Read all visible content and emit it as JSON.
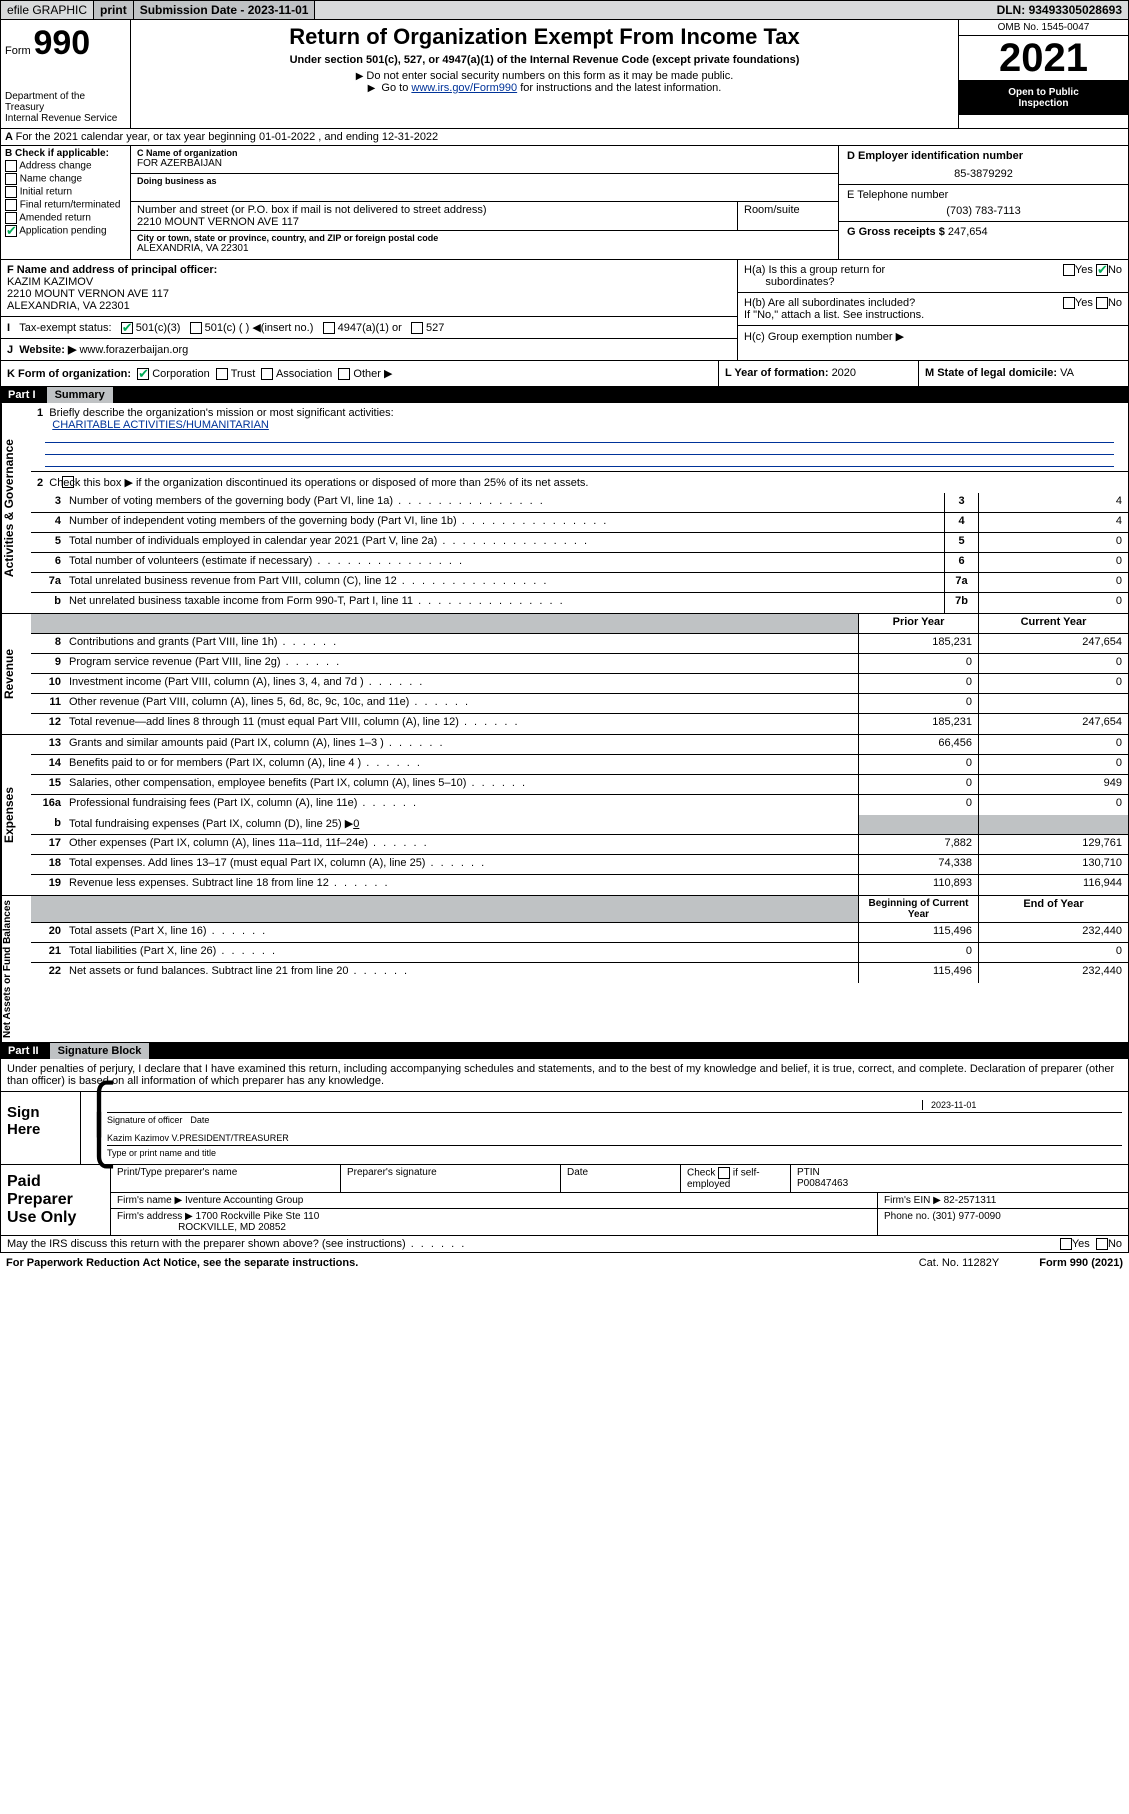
{
  "topbar": {
    "efile": "efile GRAPHIC",
    "print": "print",
    "sub_label": "Submission Date - ",
    "sub_date": "2023-11-01",
    "dln_label": "DLN: ",
    "dln": "93493305028693"
  },
  "header": {
    "form_word": "Form",
    "form_num": "990",
    "dept": "Department of the Treasury",
    "irs": "Internal Revenue Service",
    "title": "Return of Organization Exempt From Income Tax",
    "sub": "Under section 501(c), 527, or 4947(a)(1) of the Internal Revenue Code (except private foundations)",
    "note1": "Do not enter social security numbers on this form as it may be made public.",
    "note2_a": "Go to ",
    "note2_link": "www.irs.gov/Form990",
    "note2_b": " for instructions and the latest information.",
    "omb": "OMB No. 1545-0047",
    "year": "2021",
    "otp1": "Open to Public",
    "otp2": "Inspection",
    "row_a": "For the 2021 calendar year, or tax year beginning 01-01-2022   , and ending 12-31-2022"
  },
  "colB": {
    "lbl": "B Check if applicable:",
    "opts": [
      "Address change",
      "Name change",
      "Initial return",
      "Final return/terminated",
      "Amended return",
      "Application pending"
    ]
  },
  "colC": {
    "name_lbl": "C Name of organization",
    "name": "FOR AZERBAIJAN",
    "dba_lbl": "Doing business as",
    "dba": "",
    "addr_lbl": "Number and street (or P.O. box if mail is not delivered to street address)",
    "room_lbl": "Room/suite",
    "addr": "2210 MOUNT VERNON AVE 117",
    "city_lbl": "City or town, state or province, country, and ZIP or foreign postal code",
    "city": "ALEXANDRIA, VA  22301"
  },
  "colDE": {
    "d_lbl": "D Employer identification number",
    "ein": "85-3879292",
    "e_lbl": "E Telephone number",
    "phone": "(703) 783-7113",
    "g_lbl": "G Gross receipts $ ",
    "gross": "247,654"
  },
  "rowF": {
    "lbl": "F  Name and address of principal officer:",
    "name": "KAZIM KAZIMOV",
    "addr1": "2210 MOUNT VERNON AVE 117",
    "addr2": "ALEXANDRIA, VA  22301"
  },
  "rowH": {
    "ha": "H(a)  Is this a group return for",
    "ha2": "subordinates?",
    "hb": "H(b)  Are all subordinates included?",
    "hb_note": "If \"No,\" attach a list. See instructions.",
    "hc": "H(c)  Group exemption number ▶",
    "yes": "Yes",
    "no": "No"
  },
  "rowI": {
    "lbl": "Tax-exempt status:",
    "c3": "501(c)(3)",
    "c": "501(c) (  ) ◀(insert no.)",
    "a1": "4947(a)(1) or",
    "s527": "527"
  },
  "rowJ": {
    "lbl": "Website: ▶",
    "val": "www.forazerbaijan.org"
  },
  "rowK": {
    "lbl": "K Form of organization:",
    "corp": "Corporation",
    "trust": "Trust",
    "assoc": "Association",
    "other": "Other ▶",
    "l_lbl": "L Year of formation: ",
    "l_val": "2020",
    "m_lbl": "M State of legal domicile: ",
    "m_val": "VA"
  },
  "part1": {
    "label": "Part I",
    "title": "Summary"
  },
  "gov": {
    "side": "Activities & Governance",
    "l1_lbl": "Briefly describe the organization's mission or most significant activities:",
    "l1_val": "CHARITABLE ACTIVITIES/HUMANITARIAN",
    "l2": "Check this box ▶        if the organization discontinued its operations or disposed of more than 25% of its net assets.",
    "rows": [
      {
        "n": "3",
        "d": "Number of voting members of the governing body (Part VI, line 1a)",
        "box": "3",
        "v": "4"
      },
      {
        "n": "4",
        "d": "Number of independent voting members of the governing body (Part VI, line 1b)",
        "box": "4",
        "v": "4"
      },
      {
        "n": "5",
        "d": "Total number of individuals employed in calendar year 2021 (Part V, line 2a)",
        "box": "5",
        "v": "0"
      },
      {
        "n": "6",
        "d": "Total number of volunteers (estimate if necessary)",
        "box": "6",
        "v": "0"
      },
      {
        "n": "7a",
        "d": "Total unrelated business revenue from Part VIII, column (C), line 12",
        "box": "7a",
        "v": "0"
      },
      {
        "n": "b",
        "d": "Net unrelated business taxable income from Form 990-T, Part I, line 11",
        "box": "7b",
        "v": "0"
      }
    ]
  },
  "twocol_hdr": {
    "prior": "Prior Year",
    "current": "Current Year"
  },
  "revenue": {
    "side": "Revenue",
    "rows": [
      {
        "n": "8",
        "d": "Contributions and grants (Part VIII, line 1h)",
        "p": "185,231",
        "c": "247,654"
      },
      {
        "n": "9",
        "d": "Program service revenue (Part VIII, line 2g)",
        "p": "0",
        "c": "0"
      },
      {
        "n": "10",
        "d": "Investment income (Part VIII, column (A), lines 3, 4, and 7d )",
        "p": "0",
        "c": "0"
      },
      {
        "n": "11",
        "d": "Other revenue (Part VIII, column (A), lines 5, 6d, 8c, 9c, 10c, and 11e)",
        "p": "0",
        "c": ""
      },
      {
        "n": "12",
        "d": "Total revenue—add lines 8 through 11 (must equal Part VIII, column (A), line 12)",
        "p": "185,231",
        "c": "247,654"
      }
    ]
  },
  "expenses": {
    "side": "Expenses",
    "rows": [
      {
        "n": "13",
        "d": "Grants and similar amounts paid (Part IX, column (A), lines 1–3 )",
        "p": "66,456",
        "c": "0"
      },
      {
        "n": "14",
        "d": "Benefits paid to or for members (Part IX, column (A), line 4 )",
        "p": "0",
        "c": "0"
      },
      {
        "n": "15",
        "d": "Salaries, other compensation, employee benefits (Part IX, column (A), lines 5–10)",
        "p": "0",
        "c": "949"
      },
      {
        "n": "16a",
        "d": "Professional fundraising fees (Part IX, column (A), line 11e)",
        "p": "0",
        "c": "0"
      }
    ],
    "l16b_n": "b",
    "l16b": "Total fundraising expenses (Part IX, column (D), line 25) ▶",
    "l16b_v": "0",
    "rows2": [
      {
        "n": "17",
        "d": "Other expenses (Part IX, column (A), lines 11a–11d, 11f–24e)",
        "p": "7,882",
        "c": "129,761"
      },
      {
        "n": "18",
        "d": "Total expenses. Add lines 13–17 (must equal Part IX, column (A), line 25)",
        "p": "74,338",
        "c": "130,710"
      },
      {
        "n": "19",
        "d": "Revenue less expenses. Subtract line 18 from line 12",
        "p": "110,893",
        "c": "116,944"
      }
    ]
  },
  "netassets": {
    "side": "Net Assets or Fund Balances",
    "hdr_p": "Beginning of Current Year",
    "hdr_c": "End of Year",
    "rows": [
      {
        "n": "20",
        "d": "Total assets (Part X, line 16)",
        "p": "115,496",
        "c": "232,440"
      },
      {
        "n": "21",
        "d": "Total liabilities (Part X, line 26)",
        "p": "0",
        "c": "0"
      },
      {
        "n": "22",
        "d": "Net assets or fund balances. Subtract line 21 from line 20",
        "p": "115,496",
        "c": "232,440"
      }
    ]
  },
  "part2": {
    "label": "Part II",
    "title": "Signature Block"
  },
  "sig": {
    "decl": "Under penalties of perjury, I declare that I have examined this return, including accompanying schedules and statements, and to the best of my knowledge and belief, it is true, correct, and complete. Declaration of preparer (other than officer) is based on all information of which preparer has any knowledge.",
    "sign_here": "Sign Here",
    "so_lbl": "Signature of officer",
    "date_lbl": "Date",
    "date": "2023-11-01",
    "name": "Kazim Kazimov  V.PRESIDENT/TREASURER",
    "name_lbl": "Type or print name and title"
  },
  "prep": {
    "side": "Paid Preparer Use Only",
    "h1": "Print/Type preparer's name",
    "h2": "Preparer's signature",
    "h3": "Date",
    "h4a": "Check",
    "h4b": "if self-employed",
    "h5_lbl": "PTIN",
    "h5": "P00847463",
    "firm_lbl": "Firm's name   ▶  ",
    "firm": "Iventure Accounting Group",
    "ein_lbl": "Firm's EIN ▶ ",
    "ein": "82-2571311",
    "addr_lbl": "Firm's address ▶ ",
    "addr1": "1700 Rockville Pike Ste 110",
    "addr2": "ROCKVILLE, MD  20852",
    "phone_lbl": "Phone no. ",
    "phone": "(301) 977-0090"
  },
  "footer": {
    "q": "May the IRS discuss this return with the preparer shown above? (see instructions)",
    "yes": "Yes",
    "no": "No",
    "pra": "For Paperwork Reduction Act Notice, see the separate instructions.",
    "cat": "Cat. No. 11282Y",
    "form": "Form 990 (2021)"
  }
}
